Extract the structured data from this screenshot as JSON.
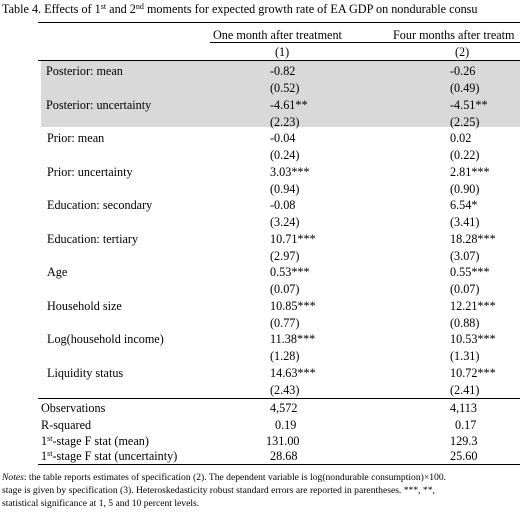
{
  "table": {
    "title": {
      "prefix": "Table 4. Effects of 1",
      "sup1": "st",
      "mid": " and 2",
      "sup2": "nd",
      "suffix": " moments for expected growth rate of EA GDP on nondurable consu"
    },
    "columns": [
      {
        "header": "One month after treatment",
        "number": "(1)"
      },
      {
        "header": "Four months after treatm",
        "number": "(2)"
      }
    ],
    "rows": [
      {
        "label": "Posterior: mean",
        "c1": "-0.82",
        "c2": "-0.26",
        "c1_se": "(0.52)",
        "c2_se": "(0.49)",
        "shaded": true
      },
      {
        "label": "Posterior: uncertainty",
        "c1": "-4.61**",
        "c2": "-4.51**",
        "c1_se": "(2.23)",
        "c2_se": "(2.25)",
        "shaded": true
      },
      {
        "label": "Prior: mean",
        "c1": "-0.04",
        "c2": "0.02",
        "c1_se": "(0.24)",
        "c2_se": "(0.22)"
      },
      {
        "label": "Prior: uncertainty",
        "c1": "3.03***",
        "c2": "2.81***",
        "c1_se": "(0.94)",
        "c2_se": "(0.90)"
      },
      {
        "label": "Education: secondary",
        "c1": "-0.08",
        "c2": "6.54*",
        "c1_se": "(3.24)",
        "c2_se": "(3.41)"
      },
      {
        "label": "Education: tertiary",
        "c1": "10.71***",
        "c2": "18.28***",
        "c1_se": "(2.97)",
        "c2_se": "(3.07)"
      },
      {
        "label": "Age",
        "c1": "0.53***",
        "c2": "0.55***",
        "c1_se": "(0.07)",
        "c2_se": "(0.07)"
      },
      {
        "label": "Household size",
        "c1": "10.85***",
        "c2": "12.21***",
        "c1_se": "(0.77)",
        "c2_se": "(0.88)"
      },
      {
        "label": "Log(household income)",
        "c1": "11.38***",
        "c2": "10.53***",
        "c1_se": "(1.28)",
        "c2_se": "(1.31)"
      },
      {
        "label": "Liquidity status",
        "c1": "14.63***",
        "c2": "10.72***",
        "c1_se": "(2.43)",
        "c2_se": "(2.41)"
      }
    ],
    "stats": [
      {
        "label": "Observations",
        "c1": "4,572",
        "c2": "4,113"
      },
      {
        "label": "R-squared",
        "c1": "0.19",
        "c2": "0.17"
      },
      {
        "label_prefix": "1",
        "label_sup": "st",
        "label_suffix": "-stage F stat (mean)",
        "c1": "131.00",
        "c2": "129.3"
      },
      {
        "label_prefix": "1",
        "label_sup": "st",
        "label_suffix": "-stage F stat (uncertainty)",
        "c1": "28.68",
        "c2": "25.60"
      }
    ],
    "notes": {
      "lead": "Notes",
      "line1": ": the table reports estimates of specification (2). The dependent variable is log(nondurable consumption)×100.",
      "line2": "stage is given by specification (3). Heteroskedasticity robust standard errors are reported in parentheses. ***, **,",
      "line3": "statistical significance at 1, 5 and 10 percent levels."
    }
  }
}
